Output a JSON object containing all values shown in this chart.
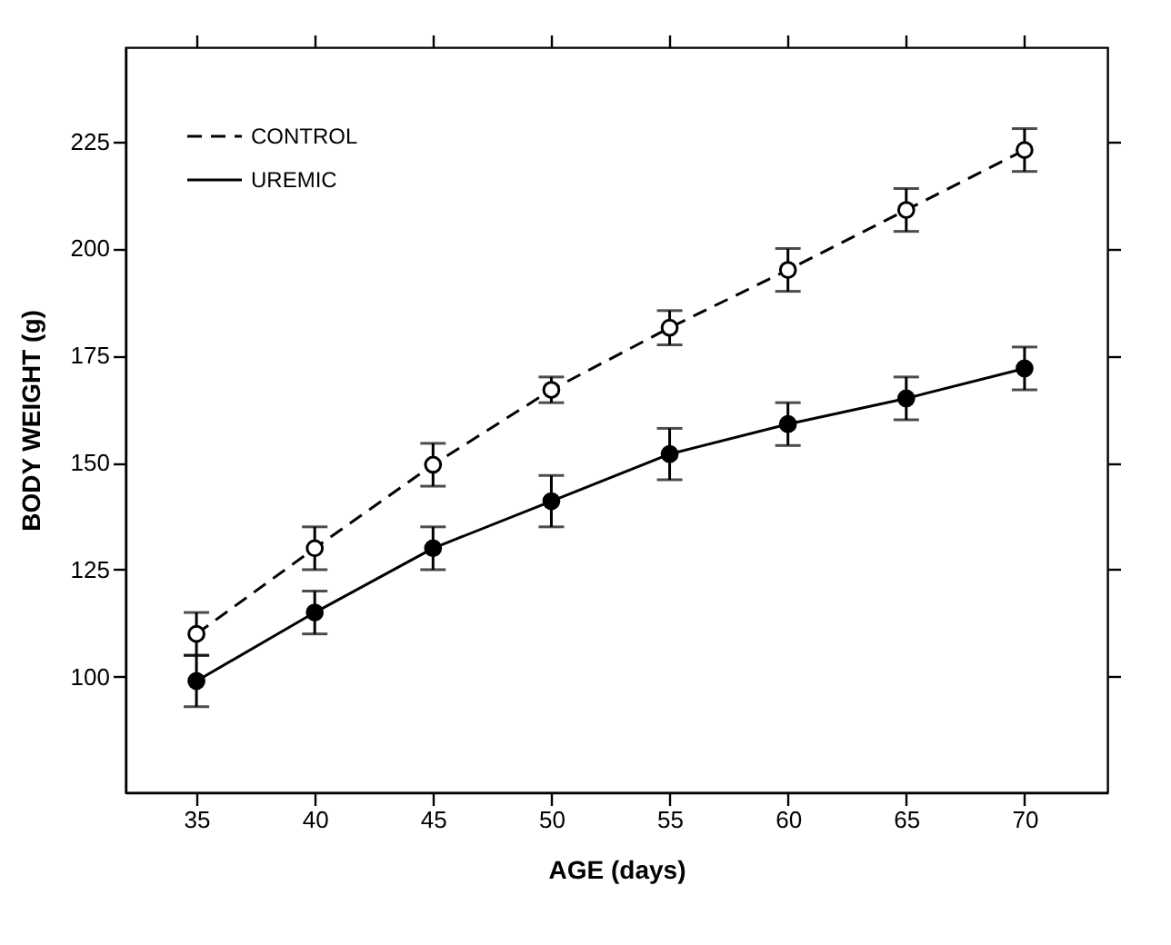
{
  "chart_data": {
    "type": "line",
    "xlabel": "AGE (days)",
    "ylabel": "BODY WEIGHT (g)",
    "x": [
      35,
      40,
      45,
      50,
      55,
      60,
      65,
      70
    ],
    "xlim": [
      32,
      73.5
    ],
    "xticks": [
      35,
      40,
      45,
      50,
      55,
      60,
      65,
      70
    ],
    "ylim": [
      73,
      247
    ],
    "yticks": [
      100,
      125,
      150,
      175,
      200,
      225
    ],
    "legend": "top left",
    "marker": "circle",
    "grid": false,
    "series": [
      {
        "name": "CONTROL",
        "color": "#000000",
        "line_style": "dashed",
        "values": [
          110,
          130,
          149.5,
          167,
          181.5,
          195,
          209,
          223
        ],
        "errors": [
          5,
          5,
          5,
          3,
          4,
          5,
          5,
          5
        ]
      },
      {
        "name": "UREMIC",
        "color": "#000000",
        "line_style": "solid",
        "values": [
          99,
          115,
          130,
          141,
          152,
          159,
          165,
          172
        ],
        "errors": [
          6,
          5,
          5,
          6,
          6,
          5,
          5,
          5
        ]
      }
    ]
  }
}
